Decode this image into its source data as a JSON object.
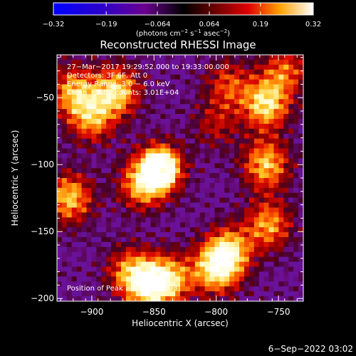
{
  "chart_data": {
    "type": "heatmap",
    "title": "Reconstructed RHESSI Image",
    "xlabel": "Heliocentric X (arcsec)",
    "ylabel": "Heliocentric Y (arcsec)",
    "xlim": [
      -928,
      -730
    ],
    "ylim": [
      -202,
      -18
    ],
    "x_ticks": [
      -900,
      -850,
      -800,
      -750
    ],
    "x_tick_labels": [
      "−900",
      "−850",
      "−800",
      "−750"
    ],
    "y_ticks": [
      -50,
      -100,
      -150,
      -200
    ],
    "y_tick_labels": [
      "−50",
      "−100",
      "−150",
      "−200"
    ],
    "colorbar": {
      "range": [
        -0.32,
        0.32
      ],
      "ticks": [
        -0.32,
        -0.19,
        -0.064,
        0.064,
        0.19,
        0.32
      ],
      "tick_labels": [
        "−0.32",
        "−0.19",
        "−0.064",
        "0.064",
        "0.19",
        "0.32"
      ],
      "unit_base": "(photons cm",
      "unit_exp1": "−2",
      "unit_mid1": " s",
      "unit_exp2": "−1",
      "unit_mid2": " asec",
      "unit_exp3": "−2",
      "unit_end": ")"
    },
    "annotations": [
      "27−Mar−2017 19:29:52.000 to 19:33:00.000",
      "Detectors: 3F 6F, Att 0",
      "Energy Range: 3.0 − 6.0 keV",
      "Clean    Total counts: 3.01E+04"
    ],
    "peak_label": "Position of Peak = [−853,−193]",
    "peak_position": [
      -853,
      -193
    ],
    "blobs": [
      {
        "x": -845,
        "y": -103,
        "amp": 1.0
      },
      {
        "x": -860,
        "y": -115,
        "amp": 0.7
      },
      {
        "x": -880,
        "y": -45,
        "amp": 0.85
      },
      {
        "x": -900,
        "y": -65,
        "amp": 0.7
      },
      {
        "x": -915,
        "y": -45,
        "amp": 0.7
      },
      {
        "x": -918,
        "y": -125,
        "amp": 0.8
      },
      {
        "x": -853,
        "y": -190,
        "amp": 1.0
      },
      {
        "x": -870,
        "y": -180,
        "amp": 0.6
      },
      {
        "x": -835,
        "y": -185,
        "amp": 0.6
      },
      {
        "x": -800,
        "y": -178,
        "amp": 0.85
      },
      {
        "x": -790,
        "y": -165,
        "amp": 0.8
      },
      {
        "x": -760,
        "y": -55,
        "amp": 0.9
      },
      {
        "x": -760,
        "y": -100,
        "amp": 0.8
      },
      {
        "x": -758,
        "y": -145,
        "amp": 0.7
      },
      {
        "x": -745,
        "y": -30,
        "amp": 0.55
      },
      {
        "x": -790,
        "y": -40,
        "amp": 0.5
      },
      {
        "x": -800,
        "y": -70,
        "amp": 0.35
      }
    ]
  },
  "footer": {
    "date": "6−Sep−2022 03:02"
  }
}
